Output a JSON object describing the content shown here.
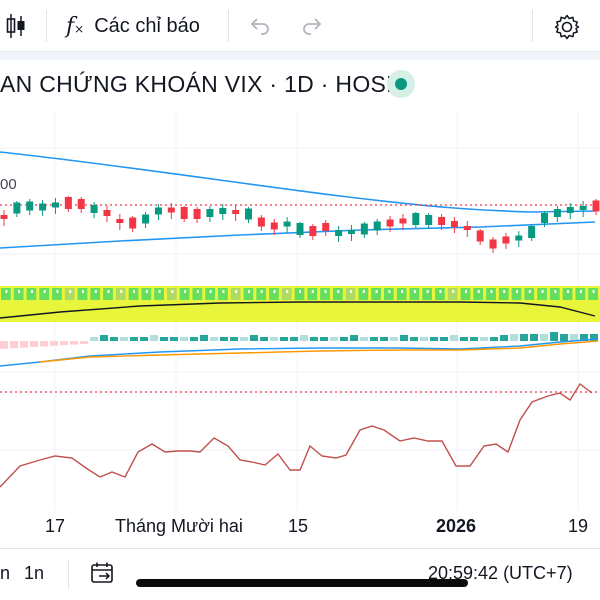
{
  "toolbar": {
    "indicators_label": "Các chỉ báo",
    "icons": [
      "candles-icon",
      "fx-icon",
      "undo-icon",
      "redo-icon",
      "gear-icon"
    ]
  },
  "header": {
    "title": "AN CHỨNG KHOÁN VIX · 1D · HOSE",
    "status_color": "#089981"
  },
  "price_scale": {
    "tick_fragment": "00"
  },
  "time_axis": {
    "labels": [
      "17",
      "Tháng Mười hai",
      "15",
      "2026",
      "19"
    ]
  },
  "bottom_bar": {
    "range_partial": "n",
    "range_1n": "1n",
    "clock": "20:59:42 (UTC+7)"
  },
  "colors": {
    "up": "#089981",
    "down": "#f23645",
    "ma_line": "#2196f3",
    "rsi_line": "#c0504d",
    "volume_band": "#e8f53a",
    "dotted_price": "#f23645"
  },
  "chart_data": {
    "type": "candlestick",
    "candle_colors": [
      "down",
      "up",
      "up",
      "up",
      "up",
      "down",
      "down",
      "up",
      "down",
      "down",
      "down",
      "up",
      "up",
      "down",
      "down",
      "down",
      "up",
      "up",
      "down",
      "up",
      "down",
      "down",
      "up",
      "up",
      "down",
      "down",
      "up",
      "up",
      "up",
      "up",
      "down",
      "down",
      "up",
      "up",
      "down",
      "down",
      "down",
      "down",
      "down",
      "down",
      "up",
      "up",
      "up",
      "up",
      "up",
      "up",
      "down"
    ],
    "rsi_trend": "rising",
    "volume_colors": [
      "up",
      "up",
      "up",
      "up",
      "up",
      "down",
      "up",
      "up",
      "up",
      "down",
      "up",
      "up",
      "up",
      "down",
      "up",
      "up",
      "up",
      "up",
      "down",
      "up",
      "up",
      "up",
      "down",
      "up",
      "up",
      "up",
      "up",
      "down",
      "up",
      "up",
      "up",
      "up",
      "up",
      "up",
      "up",
      "down",
      "up",
      "up",
      "up",
      "up",
      "up",
      "up",
      "up",
      "up",
      "up",
      "up",
      "up"
    ]
  }
}
